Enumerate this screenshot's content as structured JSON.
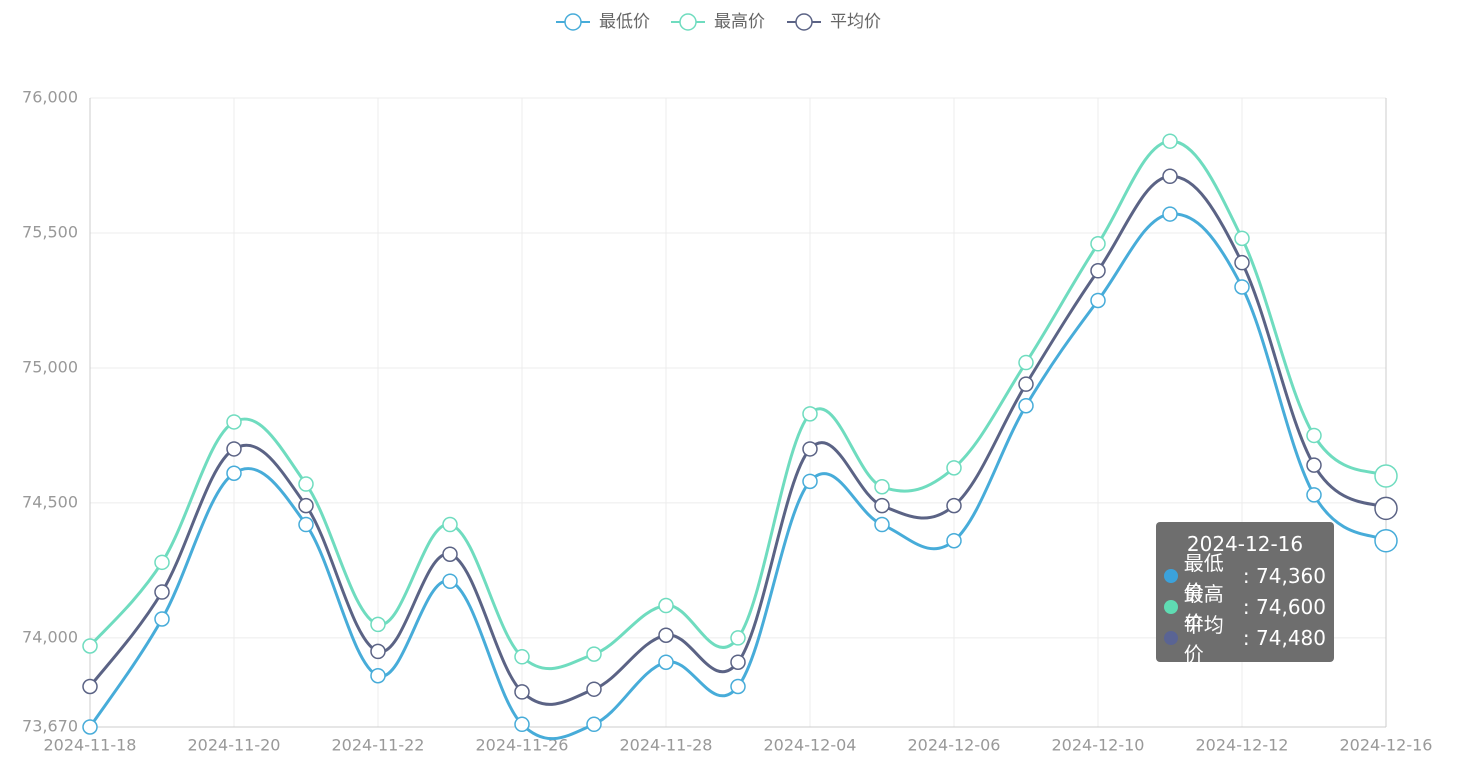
{
  "chart_data": {
    "type": "line",
    "categories": [
      "2024-11-18",
      null,
      "2024-11-20",
      null,
      "2024-11-22",
      null,
      "2024-11-26",
      null,
      "2024-11-28",
      null,
      "2024-12-04",
      null,
      "2024-12-06",
      null,
      "2024-12-10",
      null,
      "2024-12-12",
      null,
      "2024-12-16"
    ],
    "series": [
      {
        "name": "最低价",
        "color": "#47acd9",
        "values": [
          73670,
          74070,
          74610,
          74420,
          73860,
          74210,
          73680,
          73680,
          73910,
          73820,
          74580,
          74420,
          74360,
          74860,
          75250,
          75570,
          75300,
          74530,
          74360
        ]
      },
      {
        "name": "最高价",
        "color": "#6fdcbf",
        "values": [
          73970,
          74280,
          74800,
          74570,
          74050,
          74420,
          73930,
          73940,
          74120,
          74000,
          74830,
          74560,
          74630,
          75020,
          75460,
          75840,
          75480,
          74750,
          74600
        ]
      },
      {
        "name": "平均价",
        "color": "#5b6385",
        "values": [
          73820,
          74170,
          74700,
          74490,
          73950,
          74310,
          73800,
          73810,
          74010,
          73910,
          74700,
          74490,
          74490,
          74940,
          75360,
          75710,
          75390,
          74640,
          74480
        ]
      }
    ],
    "ylim": [
      73670,
      76000
    ],
    "yticks": [
      {
        "value": 73670,
        "label": "73,670"
      },
      {
        "value": 74000,
        "label": "74,000"
      },
      {
        "value": 74500,
        "label": "74,500"
      },
      {
        "value": 75000,
        "label": "75,000"
      },
      {
        "value": 75500,
        "label": "75,500"
      },
      {
        "value": 76000,
        "label": "76,000"
      }
    ],
    "grid": true,
    "tooltip": {
      "title": "2024-12-16",
      "value_labels": [
        "74,360",
        "74,600",
        "74,480"
      ],
      "dot_colors": [
        "#3ba2dc",
        "#5fdcb3",
        "#5a6494"
      ]
    }
  }
}
